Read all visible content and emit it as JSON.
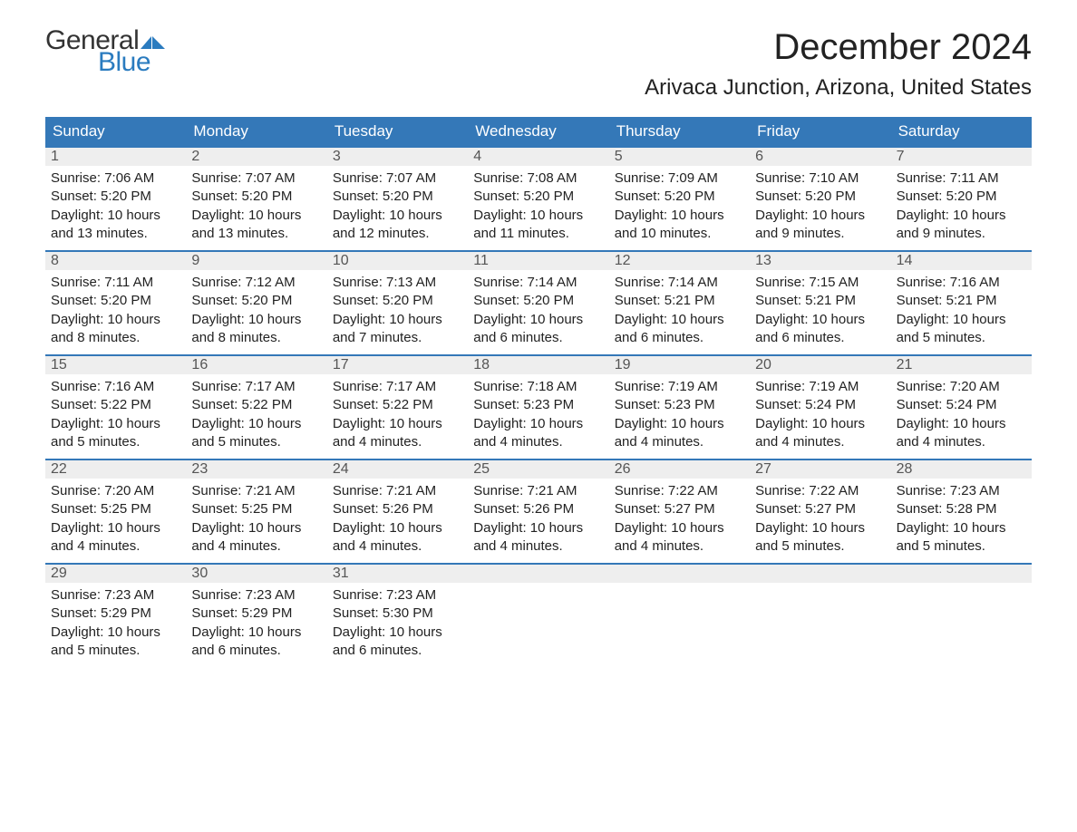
{
  "logo": {
    "word1": "General",
    "word2": "Blue",
    "flag_color": "#2a7bbf",
    "text_color_dark": "#333333"
  },
  "title": "December 2024",
  "location": "Arivaca Junction, Arizona, United States",
  "colors": {
    "header_bg": "#3478b8",
    "header_text": "#ffffff",
    "row_divider": "#3478b8",
    "daynum_bg": "#eeeeee",
    "daynum_text": "#555555",
    "body_text": "#222222",
    "page_bg": "#ffffff"
  },
  "day_names": [
    "Sunday",
    "Monday",
    "Tuesday",
    "Wednesday",
    "Thursday",
    "Friday",
    "Saturday"
  ],
  "weeks": [
    [
      {
        "n": "1",
        "sr": "Sunrise: 7:06 AM",
        "ss": "Sunset: 5:20 PM",
        "dl": "Daylight: 10 hours and 13 minutes."
      },
      {
        "n": "2",
        "sr": "Sunrise: 7:07 AM",
        "ss": "Sunset: 5:20 PM",
        "dl": "Daylight: 10 hours and 13 minutes."
      },
      {
        "n": "3",
        "sr": "Sunrise: 7:07 AM",
        "ss": "Sunset: 5:20 PM",
        "dl": "Daylight: 10 hours and 12 minutes."
      },
      {
        "n": "4",
        "sr": "Sunrise: 7:08 AM",
        "ss": "Sunset: 5:20 PM",
        "dl": "Daylight: 10 hours and 11 minutes."
      },
      {
        "n": "5",
        "sr": "Sunrise: 7:09 AM",
        "ss": "Sunset: 5:20 PM",
        "dl": "Daylight: 10 hours and 10 minutes."
      },
      {
        "n": "6",
        "sr": "Sunrise: 7:10 AM",
        "ss": "Sunset: 5:20 PM",
        "dl": "Daylight: 10 hours and 9 minutes."
      },
      {
        "n": "7",
        "sr": "Sunrise: 7:11 AM",
        "ss": "Sunset: 5:20 PM",
        "dl": "Daylight: 10 hours and 9 minutes."
      }
    ],
    [
      {
        "n": "8",
        "sr": "Sunrise: 7:11 AM",
        "ss": "Sunset: 5:20 PM",
        "dl": "Daylight: 10 hours and 8 minutes."
      },
      {
        "n": "9",
        "sr": "Sunrise: 7:12 AM",
        "ss": "Sunset: 5:20 PM",
        "dl": "Daylight: 10 hours and 8 minutes."
      },
      {
        "n": "10",
        "sr": "Sunrise: 7:13 AM",
        "ss": "Sunset: 5:20 PM",
        "dl": "Daylight: 10 hours and 7 minutes."
      },
      {
        "n": "11",
        "sr": "Sunrise: 7:14 AM",
        "ss": "Sunset: 5:20 PM",
        "dl": "Daylight: 10 hours and 6 minutes."
      },
      {
        "n": "12",
        "sr": "Sunrise: 7:14 AM",
        "ss": "Sunset: 5:21 PM",
        "dl": "Daylight: 10 hours and 6 minutes."
      },
      {
        "n": "13",
        "sr": "Sunrise: 7:15 AM",
        "ss": "Sunset: 5:21 PM",
        "dl": "Daylight: 10 hours and 6 minutes."
      },
      {
        "n": "14",
        "sr": "Sunrise: 7:16 AM",
        "ss": "Sunset: 5:21 PM",
        "dl": "Daylight: 10 hours and 5 minutes."
      }
    ],
    [
      {
        "n": "15",
        "sr": "Sunrise: 7:16 AM",
        "ss": "Sunset: 5:22 PM",
        "dl": "Daylight: 10 hours and 5 minutes."
      },
      {
        "n": "16",
        "sr": "Sunrise: 7:17 AM",
        "ss": "Sunset: 5:22 PM",
        "dl": "Daylight: 10 hours and 5 minutes."
      },
      {
        "n": "17",
        "sr": "Sunrise: 7:17 AM",
        "ss": "Sunset: 5:22 PM",
        "dl": "Daylight: 10 hours and 4 minutes."
      },
      {
        "n": "18",
        "sr": "Sunrise: 7:18 AM",
        "ss": "Sunset: 5:23 PM",
        "dl": "Daylight: 10 hours and 4 minutes."
      },
      {
        "n": "19",
        "sr": "Sunrise: 7:19 AM",
        "ss": "Sunset: 5:23 PM",
        "dl": "Daylight: 10 hours and 4 minutes."
      },
      {
        "n": "20",
        "sr": "Sunrise: 7:19 AM",
        "ss": "Sunset: 5:24 PM",
        "dl": "Daylight: 10 hours and 4 minutes."
      },
      {
        "n": "21",
        "sr": "Sunrise: 7:20 AM",
        "ss": "Sunset: 5:24 PM",
        "dl": "Daylight: 10 hours and 4 minutes."
      }
    ],
    [
      {
        "n": "22",
        "sr": "Sunrise: 7:20 AM",
        "ss": "Sunset: 5:25 PM",
        "dl": "Daylight: 10 hours and 4 minutes."
      },
      {
        "n": "23",
        "sr": "Sunrise: 7:21 AM",
        "ss": "Sunset: 5:25 PM",
        "dl": "Daylight: 10 hours and 4 minutes."
      },
      {
        "n": "24",
        "sr": "Sunrise: 7:21 AM",
        "ss": "Sunset: 5:26 PM",
        "dl": "Daylight: 10 hours and 4 minutes."
      },
      {
        "n": "25",
        "sr": "Sunrise: 7:21 AM",
        "ss": "Sunset: 5:26 PM",
        "dl": "Daylight: 10 hours and 4 minutes."
      },
      {
        "n": "26",
        "sr": "Sunrise: 7:22 AM",
        "ss": "Sunset: 5:27 PM",
        "dl": "Daylight: 10 hours and 4 minutes."
      },
      {
        "n": "27",
        "sr": "Sunrise: 7:22 AM",
        "ss": "Sunset: 5:27 PM",
        "dl": "Daylight: 10 hours and 5 minutes."
      },
      {
        "n": "28",
        "sr": "Sunrise: 7:23 AM",
        "ss": "Sunset: 5:28 PM",
        "dl": "Daylight: 10 hours and 5 minutes."
      }
    ],
    [
      {
        "n": "29",
        "sr": "Sunrise: 7:23 AM",
        "ss": "Sunset: 5:29 PM",
        "dl": "Daylight: 10 hours and 5 minutes."
      },
      {
        "n": "30",
        "sr": "Sunrise: 7:23 AM",
        "ss": "Sunset: 5:29 PM",
        "dl": "Daylight: 10 hours and 6 minutes."
      },
      {
        "n": "31",
        "sr": "Sunrise: 7:23 AM",
        "ss": "Sunset: 5:30 PM",
        "dl": "Daylight: 10 hours and 6 minutes."
      },
      null,
      null,
      null,
      null
    ]
  ]
}
